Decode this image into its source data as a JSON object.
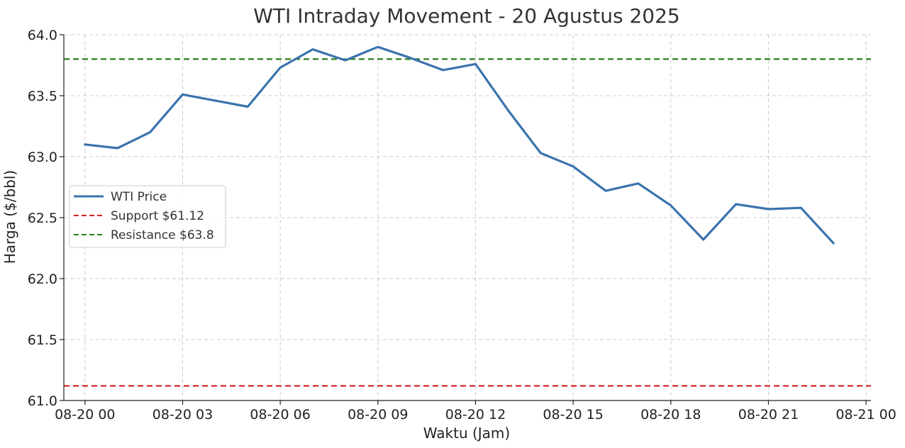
{
  "chart_data": {
    "type": "line",
    "title": "WTI Intraday Movement - 20 Agustus 2025",
    "xlabel": "Waktu (Jam)",
    "ylabel": "Harga ($/bbl)",
    "ylim": [
      61.0,
      64.0
    ],
    "xlim_hours": [
      -0.65,
      24.15
    ],
    "y_ticks": [
      61.0,
      61.5,
      62.0,
      62.5,
      63.0,
      63.5,
      64.0
    ],
    "y_tick_labels": [
      "61.0",
      "61.5",
      "62.0",
      "62.5",
      "63.0",
      "63.5",
      "64.0"
    ],
    "x_ticks_hours": [
      0,
      3,
      6,
      9,
      12,
      15,
      18,
      21,
      24
    ],
    "x_tick_labels": [
      "08-20 00",
      "08-20 03",
      "08-20 06",
      "08-20 09",
      "08-20 12",
      "08-20 15",
      "08-20 18",
      "08-20 21",
      "08-21 00"
    ],
    "grid": true,
    "legend_position": "center-left",
    "series": [
      {
        "name": "WTI Price",
        "color": "#3b73ad",
        "style": "solid",
        "x_hours": [
          0,
          1,
          2,
          3,
          4,
          5,
          6,
          7,
          8,
          9,
          10,
          11,
          12,
          13,
          14,
          15,
          16,
          17,
          18,
          19,
          20,
          21,
          22,
          23
        ],
        "values": [
          63.1,
          63.07,
          63.2,
          63.51,
          63.46,
          63.41,
          63.73,
          63.88,
          63.79,
          63.9,
          63.81,
          63.71,
          63.76,
          63.38,
          63.03,
          62.92,
          62.72,
          62.78,
          62.6,
          62.32,
          62.61,
          62.57,
          62.58,
          62.29
        ]
      },
      {
        "name": "Support $61.12",
        "color": "#d62728",
        "style": "dashed",
        "constant": 61.12
      },
      {
        "name": "Resistance $63.8",
        "color": "#2a7d1f",
        "style": "dashed",
        "constant": 63.8
      }
    ]
  }
}
